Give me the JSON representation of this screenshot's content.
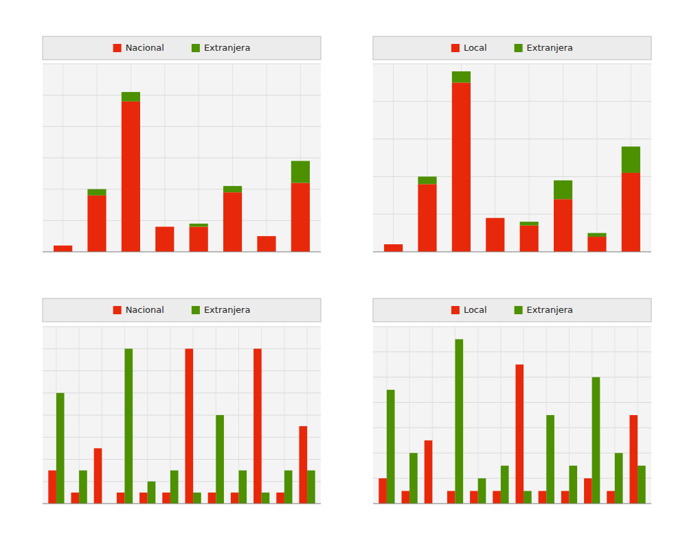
{
  "chart_data": [
    {
      "type": "bar",
      "stacked": true,
      "grid": true,
      "legend": "top",
      "tick_labels": false,
      "categories": [
        null,
        null,
        null,
        null,
        null,
        null,
        null,
        null
      ],
      "series": [
        {
          "name": "Nacional",
          "color": "#E8280A",
          "values": [
            2,
            18,
            48,
            8,
            8,
            19,
            5,
            22
          ]
        },
        {
          "name": "Extranjera",
          "color": "#4D9000",
          "values": [
            0,
            2,
            3,
            0,
            1,
            2,
            0,
            7
          ]
        }
      ],
      "ylim": [
        0,
        60
      ],
      "yticks": [
        0,
        10,
        20,
        30,
        40,
        50,
        60
      ]
    },
    {
      "type": "bar",
      "stacked": true,
      "grid": true,
      "legend": "top",
      "tick_labels": false,
      "categories": [
        null,
        null,
        null,
        null,
        null,
        null,
        null,
        null
      ],
      "series": [
        {
          "name": "Local",
          "color": "#E8280A",
          "values": [
            2,
            18,
            45,
            9,
            7,
            14,
            4,
            21
          ]
        },
        {
          "name": "Extranjera",
          "color": "#4D9000",
          "values": [
            0,
            2,
            3,
            0,
            1,
            5,
            1,
            7
          ]
        }
      ],
      "ylim": [
        0,
        50
      ],
      "yticks": [
        0,
        10,
        20,
        30,
        40,
        50
      ]
    },
    {
      "type": "bar",
      "stacked": false,
      "grid": true,
      "legend": "top",
      "tick_labels": false,
      "categories": [
        null,
        null,
        null,
        null,
        null,
        null,
        null,
        null,
        null,
        null,
        null,
        null
      ],
      "series": [
        {
          "name": "Nacional",
          "color": "#E8280A",
          "values": [
            3,
            1,
            5,
            1,
            1,
            1,
            14,
            1,
            1,
            14,
            1,
            7
          ]
        },
        {
          "name": "Extranjera",
          "color": "#4D9000",
          "values": [
            10,
            3,
            0,
            14,
            2,
            3,
            1,
            8,
            3,
            1,
            3,
            3
          ]
        }
      ],
      "ylim": [
        0,
        16
      ],
      "yticks": [
        0,
        2,
        4,
        6,
        8,
        10,
        12,
        14,
        16
      ]
    },
    {
      "type": "bar",
      "stacked": false,
      "grid": true,
      "legend": "top",
      "tick_labels": false,
      "categories": [
        null,
        null,
        null,
        null,
        null,
        null,
        null,
        null,
        null,
        null,
        null,
        null
      ],
      "series": [
        {
          "name": "Local",
          "color": "#E8280A",
          "values": [
            2,
            1,
            5,
            1,
            1,
            1,
            11,
            1,
            1,
            2,
            1,
            7
          ]
        },
        {
          "name": "Extranjera",
          "color": "#4D9000",
          "values": [
            9,
            4,
            0,
            13,
            2,
            3,
            1,
            7,
            3,
            10,
            4,
            3
          ]
        }
      ],
      "ylim": [
        0,
        14
      ],
      "yticks": [
        0,
        2,
        4,
        6,
        8,
        10,
        12,
        14
      ]
    }
  ]
}
